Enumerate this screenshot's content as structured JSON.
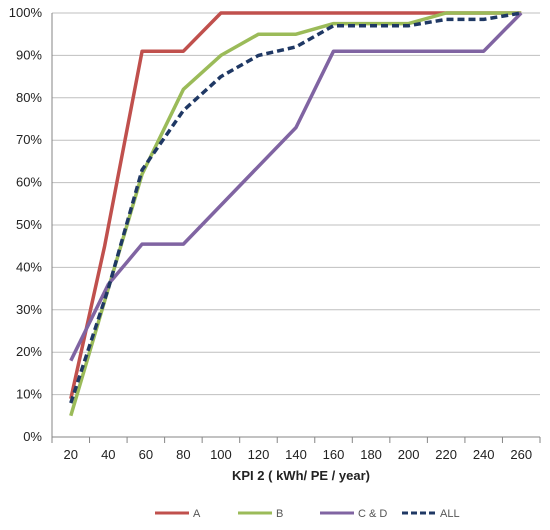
{
  "chart_data": {
    "type": "line",
    "title": "",
    "xlabel": "KPI 2 ( kWh/ PE / year)",
    "ylabel": "",
    "x_ticks": [
      20,
      40,
      60,
      80,
      100,
      120,
      140,
      160,
      180,
      200,
      220,
      240,
      260
    ],
    "xlim": [
      10,
      270
    ],
    "y_ticks": [
      0,
      10,
      20,
      30,
      40,
      50,
      60,
      70,
      80,
      90,
      100
    ],
    "y_tick_labels": [
      "0%",
      "10%",
      "20%",
      "30%",
      "40%",
      "50%",
      "60%",
      "70%",
      "80%",
      "90%",
      "100%"
    ],
    "ylim": [
      0,
      100
    ],
    "grid": {
      "horizontal": true,
      "vertical": false
    },
    "legend_position": "bottom",
    "series": [
      {
        "name": "A",
        "color": "#c0504d",
        "dash": "solid",
        "points": [
          [
            20,
            9
          ],
          [
            38,
            45
          ],
          [
            58,
            91
          ],
          [
            80,
            91
          ],
          [
            100,
            100
          ],
          [
            260,
            100
          ]
        ]
      },
      {
        "name": "B",
        "color": "#9bbb59",
        "dash": "solid",
        "points": [
          [
            20,
            5
          ],
          [
            40,
            35
          ],
          [
            58,
            62
          ],
          [
            80,
            82
          ],
          [
            100,
            90
          ],
          [
            120,
            95
          ],
          [
            140,
            95
          ],
          [
            160,
            97.5
          ],
          [
            200,
            97.5
          ],
          [
            220,
            100
          ],
          [
            260,
            100
          ]
        ]
      },
      {
        "name": "C & D",
        "color": "#8064a2",
        "dash": "solid",
        "points": [
          [
            20,
            18
          ],
          [
            40,
            36
          ],
          [
            58,
            45.5
          ],
          [
            80,
            45.5
          ],
          [
            140,
            73
          ],
          [
            160,
            91
          ],
          [
            240,
            91
          ],
          [
            260,
            100
          ]
        ]
      },
      {
        "name": "ALL",
        "color": "#1f3864",
        "dash": "dashed",
        "points": [
          [
            20,
            8
          ],
          [
            40,
            35
          ],
          [
            58,
            63
          ],
          [
            80,
            77
          ],
          [
            100,
            85
          ],
          [
            120,
            90
          ],
          [
            140,
            92
          ],
          [
            160,
            97
          ],
          [
            200,
            97
          ],
          [
            220,
            98.5
          ],
          [
            240,
            98.5
          ],
          [
            260,
            100
          ]
        ]
      }
    ]
  }
}
